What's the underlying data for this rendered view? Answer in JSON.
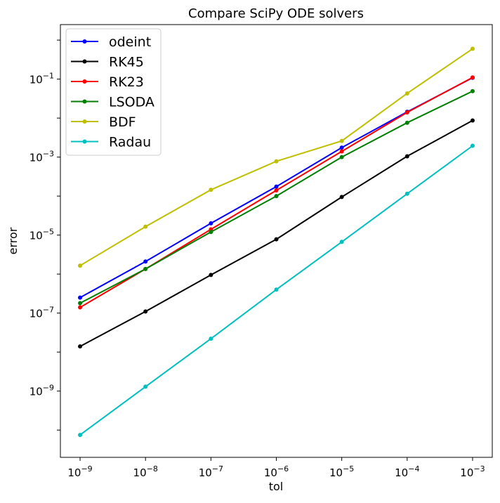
{
  "chart_data": {
    "type": "line",
    "title": "Compare SciPy ODE solvers",
    "xlabel": "tol",
    "ylabel": "error",
    "xscale": "log",
    "yscale": "log",
    "xlim": [
      5e-10,
      0.002
    ],
    "ylim": [
      2e-11,
      2.5
    ],
    "grid": false,
    "legend_position": "top-left",
    "x": [
      1e-09,
      1e-08,
      1e-07,
      1e-06,
      1e-05,
      0.0001,
      0.001
    ],
    "xtick_labels": [
      {
        "base": "10",
        "exp": "−9",
        "value": 1e-09
      },
      {
        "base": "10",
        "exp": "−8",
        "value": 1e-08
      },
      {
        "base": "10",
        "exp": "−7",
        "value": 1e-07
      },
      {
        "base": "10",
        "exp": "−6",
        "value": 1e-06
      },
      {
        "base": "10",
        "exp": "−5",
        "value": 1e-05
      },
      {
        "base": "10",
        "exp": "−4",
        "value": 0.0001
      },
      {
        "base": "10",
        "exp": "−3",
        "value": 0.001
      }
    ],
    "ytick_labels": [
      {
        "base": "10",
        "exp": "−9",
        "value": 1e-09
      },
      {
        "base": "10",
        "exp": "−7",
        "value": 1e-07
      },
      {
        "base": "10",
        "exp": "−5",
        "value": 1e-05
      },
      {
        "base": "10",
        "exp": "−3",
        "value": 0.001
      },
      {
        "base": "10",
        "exp": "−1",
        "value": 0.1
      }
    ],
    "series": [
      {
        "name": "odeint",
        "color": "#0000ff",
        "values": [
          2.5e-07,
          2.1e-06,
          2e-05,
          0.000175,
          0.00175,
          0.0145,
          0.108
        ]
      },
      {
        "name": "RK45",
        "color": "#000000",
        "values": [
          1.4e-08,
          1.1e-07,
          9.5e-07,
          7.8e-06,
          9.5e-05,
          0.00105,
          0.0087
        ]
      },
      {
        "name": "RK23",
        "color": "#ff0000",
        "values": [
          1.4e-07,
          1.35e-06,
          1.4e-05,
          0.00014,
          0.0014,
          0.014,
          0.11
        ]
      },
      {
        "name": "LSODA",
        "color": "#008000",
        "values": [
          1.8e-07,
          1.35e-06,
          1.2e-05,
          0.0001,
          0.001,
          0.0076,
          0.049
        ]
      },
      {
        "name": "BDF",
        "color": "#bfbf00",
        "values": [
          1.65e-06,
          1.65e-05,
          0.000145,
          0.00078,
          0.0026,
          0.043,
          0.6
        ]
      },
      {
        "name": "Radau",
        "color": "#00bfbf",
        "values": [
          7.5e-11,
          1.3e-09,
          2.2e-08,
          4e-07,
          6.7e-06,
          0.000115,
          0.00195
        ]
      }
    ]
  }
}
